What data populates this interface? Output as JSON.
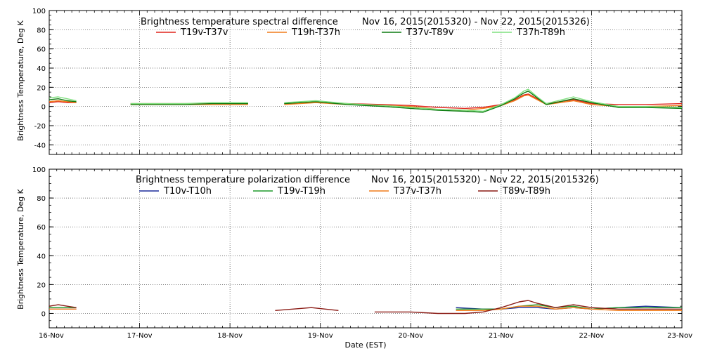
{
  "chart_data": [
    {
      "type": "line",
      "title": "Brightness temperature spectral difference",
      "date_range": "Nov 16, 2015(2015320)  -  Nov 22, 2015(2015326)",
      "ylabel": "Brightness Temperature, Deg K",
      "ylim": [
        -50,
        100
      ],
      "yticks": [
        -40,
        -20,
        0,
        20,
        40,
        60,
        80,
        100
      ],
      "grid": true,
      "legend_position": "top",
      "series": [
        {
          "name": "T19v-T37v",
          "color": "#e0241c",
          "x": [
            16.0,
            16.1,
            16.2,
            16.3,
            16.9,
            17.2,
            17.5,
            17.8,
            18.2,
            18.6,
            18.95,
            19.3,
            19.7,
            20.0,
            20.3,
            20.6,
            20.8,
            21.0,
            21.15,
            21.25,
            21.3,
            21.4,
            21.5,
            21.8,
            22.0,
            22.3,
            22.6,
            23.0
          ],
          "y": [
            4,
            5,
            4,
            4,
            3,
            3,
            3,
            3,
            3,
            3,
            4,
            3,
            2,
            1,
            -1,
            -2,
            -1,
            2,
            7,
            12,
            13,
            8,
            3,
            7,
            3,
            2,
            2,
            3
          ]
        },
        {
          "name": "T19h-T37h",
          "color": "#f07c1a",
          "x": [
            16.0,
            16.1,
            16.2,
            16.3,
            16.9,
            17.2,
            17.5,
            17.8,
            18.2,
            18.6,
            18.95,
            19.3,
            19.7,
            20.0,
            20.3,
            20.6,
            20.8,
            21.0,
            21.15,
            21.25,
            21.3,
            21.4,
            21.5,
            21.8,
            22.0,
            22.3,
            22.6,
            23.0
          ],
          "y": [
            5,
            6,
            5,
            4,
            2,
            2,
            2,
            2,
            2,
            2,
            4,
            2,
            1,
            0,
            -3,
            -4,
            -2,
            1,
            6,
            11,
            12,
            7,
            2,
            6,
            2,
            0,
            0,
            1
          ]
        },
        {
          "name": "T37v-T89v",
          "color": "#0b7a10",
          "x": [
            16.0,
            16.1,
            16.2,
            16.3,
            16.9,
            17.2,
            17.5,
            17.8,
            18.2,
            18.6,
            18.95,
            19.3,
            19.7,
            20.0,
            20.3,
            20.6,
            20.8,
            21.0,
            21.15,
            21.25,
            21.3,
            21.4,
            21.5,
            21.8,
            22.0,
            22.3,
            22.6,
            23.0
          ],
          "y": [
            7,
            8,
            6,
            5,
            2,
            2,
            2,
            3,
            3,
            3,
            5,
            2,
            0,
            -2,
            -4,
            -5,
            -6,
            1,
            8,
            14,
            16,
            9,
            2,
            8,
            4,
            -1,
            -1,
            -2
          ]
        },
        {
          "name": "T37h-T89h",
          "color": "#7fe07f",
          "x": [
            16.0,
            16.1,
            16.2,
            16.3,
            16.9,
            17.2,
            17.5,
            17.8,
            18.2,
            18.6,
            18.95,
            19.3,
            19.7,
            20.0,
            20.3,
            20.6,
            20.8,
            21.0,
            21.15,
            21.25,
            21.3,
            21.4,
            21.5,
            21.8,
            22.0,
            22.3,
            22.6,
            23.0
          ],
          "y": [
            9,
            10,
            8,
            6,
            3,
            3,
            3,
            4,
            4,
            4,
            6,
            3,
            1,
            -1,
            -3,
            -4,
            -5,
            2,
            9,
            16,
            18,
            10,
            3,
            10,
            5,
            0,
            0,
            -1
          ]
        }
      ]
    },
    {
      "type": "line",
      "title": "Brightness temperature polarization difference",
      "date_range": "Nov 16, 2015(2015320)  -  Nov 22, 2015(2015326)",
      "ylabel": "Brightness Temperature, Deg K",
      "xlabel": "Date (EST)",
      "ylim": [
        -10,
        100
      ],
      "yticks": [
        0,
        20,
        40,
        60,
        80,
        100
      ],
      "xticks": [
        "16-Nov",
        "17-Nov",
        "18-Nov",
        "19-Nov",
        "20-Nov",
        "21-Nov",
        "22-Nov",
        "23-Nov"
      ],
      "grid": true,
      "legend_position": "top",
      "series": [
        {
          "name": "T10v-T10h",
          "color": "#1a2a9a",
          "x": [
            16.0,
            16.1,
            16.2,
            16.3,
            16.9,
            17.5,
            18.0,
            18.5,
            19.0,
            19.5,
            20.0,
            20.5,
            20.8,
            21.0,
            21.2,
            21.4,
            21.6,
            21.8,
            22.0,
            22.3,
            22.6,
            23.0
          ],
          "y": [
            3,
            3,
            3,
            3,
            2,
            3,
            3,
            3,
            3,
            3,
            4,
            4,
            3,
            3,
            4,
            4,
            3,
            4,
            3,
            4,
            5,
            4
          ]
        },
        {
          "name": "T19v-T19h",
          "color": "#1f9a2a",
          "x": [
            16.0,
            16.1,
            16.2,
            16.3,
            16.9,
            17.5,
            18.0,
            18.5,
            19.0,
            19.5,
            20.0,
            20.5,
            20.8,
            21.0,
            21.2,
            21.4,
            21.6,
            21.8,
            22.0,
            22.3,
            22.6,
            23.0
          ],
          "y": [
            4,
            4,
            4,
            4,
            2,
            2,
            2,
            3,
            2,
            3,
            3,
            3,
            3,
            3,
            5,
            6,
            4,
            5,
            3,
            4,
            4,
            4
          ]
        },
        {
          "name": "T37v-T37h",
          "color": "#f07c1a",
          "x": [
            16.0,
            16.1,
            16.2,
            16.3,
            16.9,
            17.5,
            18.0,
            18.5,
            19.0,
            19.5,
            20.0,
            20.5,
            20.8,
            21.0,
            21.2,
            21.4,
            21.6,
            21.8,
            22.0,
            22.3,
            22.6,
            23.0
          ],
          "y": [
            3,
            3,
            3,
            3,
            2,
            2,
            2,
            2,
            2,
            2,
            2,
            2,
            2,
            3,
            5,
            5,
            3,
            4,
            3,
            2,
            2,
            2
          ]
        },
        {
          "name": "T89v-T89h",
          "color": "#8a1a14",
          "x": [
            16.0,
            16.1,
            16.2,
            16.3,
            16.9,
            17.5,
            18.0,
            18.5,
            18.9,
            19.2,
            19.6,
            20.0,
            20.3,
            20.6,
            20.8,
            21.0,
            21.2,
            21.3,
            21.4,
            21.6,
            21.8,
            22.0,
            22.3,
            22.6,
            23.0
          ],
          "y": [
            5,
            6,
            5,
            4,
            2,
            2,
            2,
            2,
            4,
            2,
            1,
            1,
            0,
            0,
            1,
            4,
            8,
            9,
            7,
            4,
            6,
            4,
            3,
            3,
            3
          ]
        }
      ]
    }
  ]
}
